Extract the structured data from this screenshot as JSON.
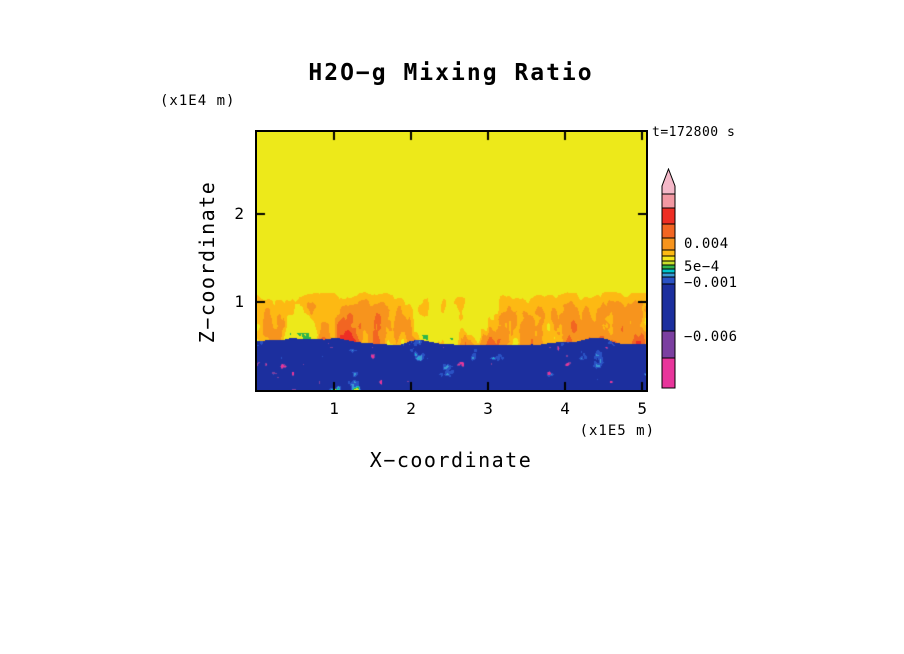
{
  "title": "H2O−g Mixing Ratio",
  "timestamp_label": "t=172800 s",
  "axes": {
    "x": {
      "label": "X−coordinate",
      "unit": "(x1E5 m)",
      "tick_labels": [
        "1",
        "2",
        "3",
        "4",
        "5"
      ]
    },
    "z": {
      "label": "Z−coordinate",
      "unit": "(x1E4 m)",
      "tick_labels": [
        "1",
        "2"
      ]
    }
  },
  "colorbar": {
    "arrow_color": "#f4b8c8",
    "segments": [
      {
        "color": "#f298a2",
        "h": 14
      },
      {
        "color": "#ee2e24",
        "h": 16
      },
      {
        "color": "#f26522",
        "h": 14
      },
      {
        "color": "#f7941d",
        "h": 12
      },
      {
        "color": "#fdb913",
        "h": 6
      },
      {
        "color": "#f5e71a",
        "h": 5
      },
      {
        "color": "#c8e02c",
        "h": 4
      },
      {
        "color": "#2fb54a",
        "h": 4
      },
      {
        "color": "#00c5cd",
        "h": 4
      },
      {
        "color": "#3a9bd5",
        "h": 4
      },
      {
        "color": "#2a52c4",
        "h": 7
      },
      {
        "color": "#1c2f9e",
        "h": 47
      },
      {
        "color": "#7b3fa0",
        "h": 27
      },
      {
        "color": "#e8359b",
        "h": 30
      }
    ],
    "labels": [
      {
        "text": "0.004",
        "after_segment": 2
      },
      {
        "text": "5e−4",
        "after_segment": 5
      },
      {
        "text": "−0.001",
        "after_segment": 9
      },
      {
        "text": "−0.006",
        "after_segment": 11
      }
    ]
  },
  "chart_data": {
    "type": "heatmap",
    "title": "H2O-g Mixing Ratio",
    "xlabel": "X-coordinate (x1E5 m)",
    "ylabel": "Z-coordinate (x1E4 m)",
    "time_s": 172800,
    "x_range": [
      0,
      5.05
    ],
    "x_unit_m": 100000,
    "z_range": [
      0,
      2.93
    ],
    "z_unit_m": 10000,
    "x_ticks": [
      1,
      2,
      3,
      4,
      5
    ],
    "z_ticks": [
      1,
      2
    ],
    "value_levels": [
      -0.006,
      -0.001,
      0.0005,
      0.004
    ],
    "value_level_labels": [
      "-0.006",
      "-0.001",
      "5e-4",
      "0.004"
    ],
    "color_scale": [
      {
        "upto": -0.0075,
        "color": "#e8359b"
      },
      {
        "upto": -0.0062,
        "color": "#7b3fa0"
      },
      {
        "upto": -0.002,
        "color": "#1c2f9e"
      },
      {
        "upto": -0.0012,
        "color": "#2a52c4"
      },
      {
        "upto": -0.0008,
        "color": "#3a9bd5"
      },
      {
        "upto": -0.0005,
        "color": "#00c5cd"
      },
      {
        "upto": -0.0002,
        "color": "#2fb54a"
      },
      {
        "upto": 0.0002,
        "color": "#c8e02c"
      },
      {
        "upto": 0.001,
        "color": "#ede91a"
      },
      {
        "upto": 0.002,
        "color": "#fdb913"
      },
      {
        "upto": 0.0035,
        "color": "#f7941d"
      },
      {
        "upto": 0.005,
        "color": "#f26522"
      },
      {
        "upto": 0.0075,
        "color": "#ee2e24"
      },
      {
        "upto": 1,
        "color": "#f298a2"
      }
    ],
    "regions": [
      {
        "name": "upper-uniform-layer",
        "z_frac": [
          0.38,
          1.0
        ],
        "value": 0.0005
      },
      {
        "name": "plume-band",
        "z_frac": [
          0.185,
          0.38
        ],
        "value_range": [
          0.0005,
          0.006
        ]
      },
      {
        "name": "lower-layer",
        "z_frac": [
          0.0,
          0.185
        ],
        "value_range": [
          -0.008,
          -0.0002
        ]
      }
    ]
  }
}
